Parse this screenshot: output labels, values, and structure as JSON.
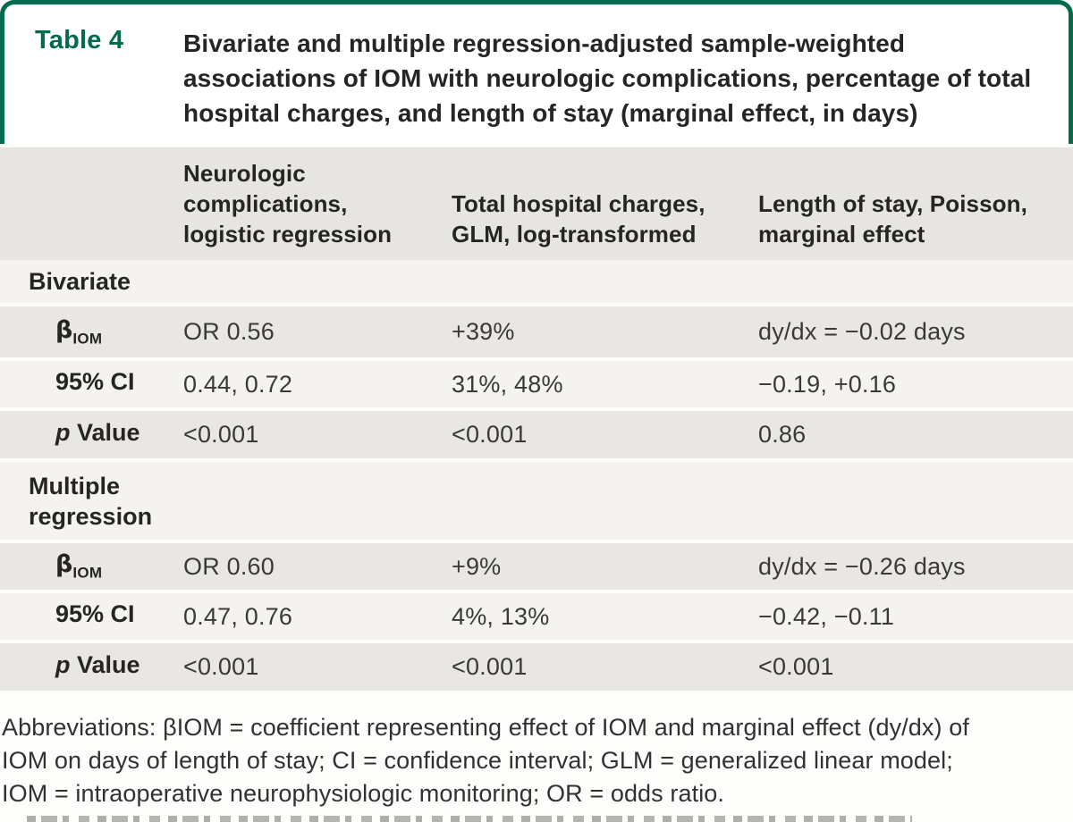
{
  "colors": {
    "accent_green": "#006b4d",
    "header_band": "#e6e5e2",
    "row_gray": "#e9e7e4",
    "row_light": "#f4f3f0",
    "text_dark": "#262523"
  },
  "header": {
    "table_label": "Table 4",
    "title": "Bivariate and multiple regression-adjusted sample-weighted associations of IOM with neurologic complications, percentage of total hospital charges, and length of stay (marginal effect, in days)"
  },
  "columns": {
    "col2": "Neurologic complications, logistic regression",
    "col3": "Total hospital charges, GLM, log-transformed",
    "col4": "Length of stay, Poisson, marginal effect"
  },
  "sections": [
    {
      "label": "Bivariate",
      "rows": [
        {
          "label_beta": "β",
          "label_sub": "IOM",
          "cells": [
            "OR 0.56",
            "+39%",
            "dy/dx = −0.02 days"
          ]
        },
        {
          "label": "95% CI",
          "cells": [
            "0.44, 0.72",
            "31%, 48%",
            "−0.19, +0.16"
          ]
        },
        {
          "label_italic": "p",
          "label": " Value",
          "cells": [
            "<0.001",
            "<0.001",
            "0.86"
          ]
        }
      ]
    },
    {
      "label": "Multiple regression",
      "rows": [
        {
          "label_beta": "β",
          "label_sub": "IOM",
          "cells": [
            "OR 0.60",
            "+9%",
            "dy/dx = −0.26 days"
          ]
        },
        {
          "label": "95% CI",
          "cells": [
            "0.47, 0.76",
            "4%, 13%",
            "−0.42, −0.11"
          ]
        },
        {
          "label_italic": "p",
          "label": " Value",
          "cells": [
            "<0.001",
            "<0.001",
            "<0.001"
          ]
        }
      ]
    }
  ],
  "footnote": {
    "lines": [
      "Abbreviations: βIOM = coefficient representing effect of IOM and marginal effect (dy/dx) of",
      "IOM on days of length of stay; CI = confidence interval; GLM = generalized linear model;",
      "IOM = intraoperative neurophysiologic monitoring; OR = odds ratio."
    ]
  }
}
